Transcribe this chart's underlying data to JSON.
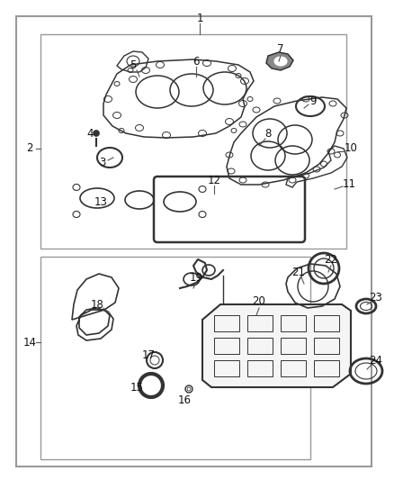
{
  "bg_color": "#ffffff",
  "border_color": "#999999",
  "line_color": "#333333",
  "fig_width": 4.38,
  "fig_height": 5.33
}
